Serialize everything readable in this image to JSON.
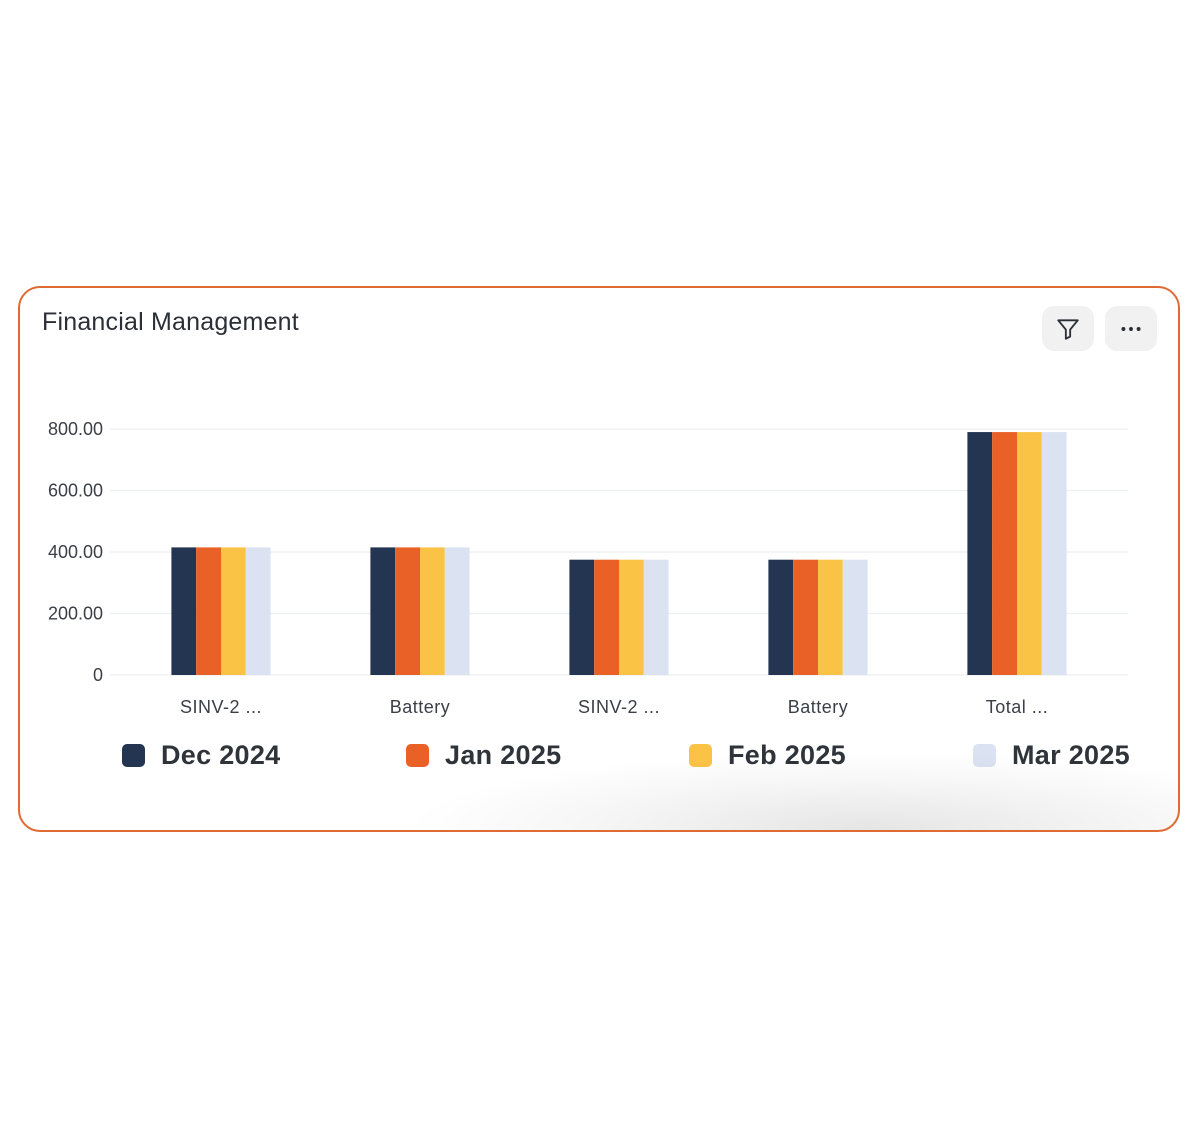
{
  "card": {
    "title": "Financial Management",
    "filter_icon": "filter-icon",
    "more_icon": "more-horizontal-icon",
    "border_color": "#e06a34"
  },
  "colors": {
    "Dec 2024": "#243552",
    "Jan 2025": "#ea6127",
    "Feb 2025": "#fbc346",
    "Mar 2025": "#dbe2f1"
  },
  "chart_data": {
    "type": "bar",
    "title": "Financial Management",
    "categories": [
      "SINV-2 ...",
      "Battery",
      "SINV-2 ...",
      "Battery",
      "Total ..."
    ],
    "series": [
      {
        "name": "Dec 2024",
        "values": [
          415,
          415,
          375,
          375,
          790
        ]
      },
      {
        "name": "Jan 2025",
        "values": [
          415,
          415,
          375,
          375,
          790
        ]
      },
      {
        "name": "Feb 2025",
        "values": [
          415,
          415,
          375,
          375,
          790
        ]
      },
      {
        "name": "Mar 2025",
        "values": [
          415,
          415,
          375,
          375,
          790
        ]
      }
    ],
    "yticks": [
      "0",
      "200.00",
      "400.00",
      "600.00",
      "800.00"
    ],
    "ylim": [
      0,
      800
    ],
    "xlabel": "",
    "ylabel": "",
    "grid": true,
    "legend_position": "bottom"
  }
}
